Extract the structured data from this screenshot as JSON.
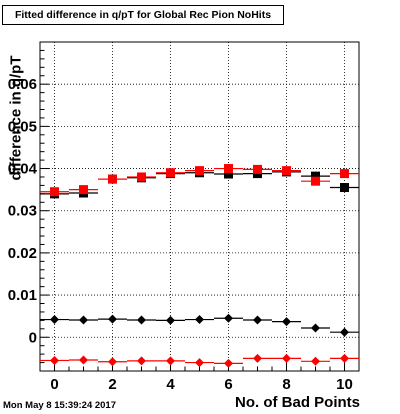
{
  "title": "Fitted difference in q/pT for Global Rec Pion NoHits",
  "timestamp": "Mon May  8 15:39:24 2017",
  "chart_data": {
    "type": "scatter",
    "title": "Fitted difference in q/pT for Global Rec Pion NoHits",
    "xlabel": "No. of Bad Points",
    "ylabel": "difference in q/pT",
    "xlim": [
      -0.5,
      10.5
    ],
    "ylim": [
      -0.008,
      0.07
    ],
    "x_ticks": [
      0,
      2,
      4,
      6,
      8,
      10
    ],
    "y_ticks": [
      0,
      0.01,
      0.02,
      0.03,
      0.04,
      0.05,
      0.06
    ],
    "y_tick_labels": [
      "0",
      "0.01",
      "0.02",
      "0.03",
      "0.04",
      "0.05",
      "0.06"
    ],
    "grid": true,
    "series": [
      {
        "marker": "square",
        "color": "#000000",
        "x": [
          0,
          1,
          2,
          3,
          4,
          5,
          6,
          7,
          8,
          9,
          10
        ],
        "y": [
          0.034,
          0.0342,
          0.0375,
          0.0378,
          0.0388,
          0.039,
          0.0387,
          0.0388,
          0.0392,
          0.0382,
          0.0355
        ]
      },
      {
        "marker": "square",
        "color": "#ff0000",
        "x": [
          0,
          1,
          2,
          3,
          4,
          5,
          6,
          7,
          8,
          9,
          10
        ],
        "y": [
          0.0345,
          0.035,
          0.0375,
          0.038,
          0.039,
          0.0395,
          0.04,
          0.0398,
          0.0395,
          0.037,
          0.0388
        ]
      },
      {
        "marker": "diamond",
        "color": "#000000",
        "x": [
          0,
          1,
          2,
          3,
          4,
          5,
          6,
          7,
          8,
          9,
          10
        ],
        "y": [
          0.0042,
          0.0041,
          0.0043,
          0.0041,
          0.004,
          0.0042,
          0.0045,
          0.0041,
          0.0037,
          0.0022,
          0.0012
        ]
      },
      {
        "marker": "diamond",
        "color": "#ff0000",
        "x": [
          0,
          1,
          2,
          3,
          4,
          5,
          6,
          7,
          8,
          9,
          10
        ],
        "y": [
          -0.0055,
          -0.0054,
          -0.0058,
          -0.0056,
          -0.0056,
          -0.006,
          -0.0062,
          -0.005,
          -0.005,
          -0.0057,
          -0.005
        ]
      }
    ]
  }
}
